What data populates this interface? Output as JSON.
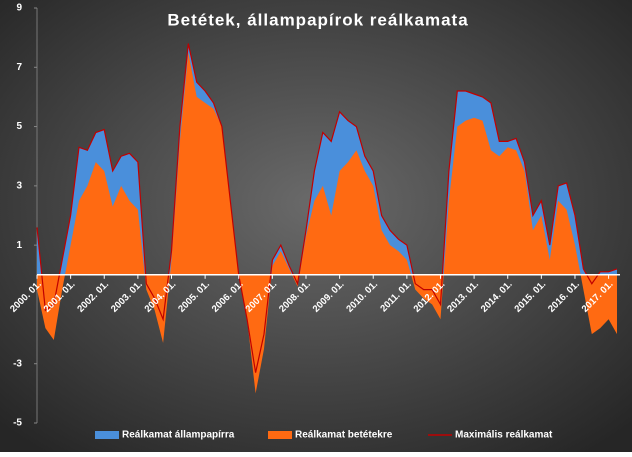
{
  "chart_data": {
    "type": "area",
    "title": "Betétek, állampapírok  reálkamata",
    "categories": [
      "2000. 01.",
      null,
      null,
      null,
      "2001. 01.",
      null,
      null,
      null,
      "2002. 01.",
      null,
      null,
      null,
      "2003. 01.",
      null,
      null,
      null,
      "2004. 01.",
      null,
      null,
      null,
      "2005. 01.",
      null,
      null,
      null,
      "2006. 01.",
      null,
      null,
      null,
      "2007. 01.",
      null,
      null,
      null,
      "2008. 01.",
      null,
      null,
      null,
      "2009. 01.",
      null,
      null,
      null,
      "2010. 01.",
      null,
      null,
      null,
      "2011. 01.",
      null,
      null,
      null,
      "2012. 01.",
      null,
      null,
      null,
      "2013. 01.",
      null,
      null,
      null,
      "2014. 01.",
      null,
      null,
      null,
      "2015. 01.",
      null,
      null,
      null,
      "2016. 01.",
      null,
      null,
      null,
      "2017. 01.",
      null
    ],
    "series": [
      {
        "name": "Reálkamat állampapírra",
        "color": "#4a8fdb",
        "values": [
          1.6,
          -1.2,
          -1.0,
          0.5,
          2.0,
          4.3,
          4.2,
          4.8,
          4.9,
          3.5,
          4.0,
          4.1,
          3.8,
          -0.3,
          -0.8,
          -1.5,
          0.8,
          5.0,
          7.8,
          6.5,
          6.2,
          5.8,
          5.0,
          2.5,
          0.0,
          -1.5,
          -3.3,
          -2.0,
          0.5,
          1.0,
          0.3,
          -0.3,
          1.5,
          3.5,
          4.8,
          4.5,
          5.5,
          5.2,
          5.0,
          4.0,
          3.5,
          2.0,
          1.5,
          1.2,
          1.0,
          -0.3,
          -0.5,
          -0.5,
          -1.0,
          3.5,
          6.2,
          6.2,
          6.1,
          6.0,
          5.8,
          4.5,
          4.5,
          4.6,
          3.8,
          2.0,
          2.5,
          1.0,
          3.0,
          3.1,
          2.0,
          0.2,
          -0.3,
          0.1,
          0.1,
          0.2
        ]
      },
      {
        "name": "Reálkamat betétekre",
        "color": "#ff6a12",
        "values": [
          -0.5,
          -1.8,
          -2.2,
          -0.5,
          1.0,
          2.5,
          3.0,
          3.8,
          3.5,
          2.3,
          3.0,
          2.5,
          2.2,
          -0.5,
          -1.2,
          -2.3,
          0.5,
          4.5,
          7.5,
          6.0,
          5.8,
          5.6,
          5.0,
          2.5,
          0.0,
          -1.5,
          -4.0,
          -2.5,
          0.3,
          0.8,
          0.2,
          -0.4,
          1.3,
          2.5,
          3.0,
          2.0,
          3.5,
          3.8,
          4.2,
          3.5,
          3.0,
          1.5,
          1.0,
          0.8,
          0.5,
          -0.5,
          -0.8,
          -1.0,
          -1.5,
          2.5,
          5.0,
          5.2,
          5.3,
          5.2,
          4.2,
          4.0,
          4.3,
          4.2,
          3.5,
          1.5,
          2.0,
          0.5,
          2.5,
          2.2,
          1.0,
          -0.5,
          -2.0,
          -1.8,
          -1.5,
          -2.0
        ]
      },
      {
        "name": "Maximális reálkamat",
        "color": "#c00000",
        "values": [
          1.6,
          -1.2,
          -1.0,
          0.5,
          2.0,
          4.3,
          4.2,
          4.8,
          4.9,
          3.5,
          4.0,
          4.1,
          3.8,
          -0.3,
          -0.8,
          -1.5,
          0.8,
          5.0,
          7.8,
          6.5,
          6.2,
          5.8,
          5.0,
          2.5,
          0.0,
          -1.5,
          -3.3,
          -2.0,
          0.5,
          1.0,
          0.3,
          -0.3,
          1.5,
          3.5,
          4.8,
          4.5,
          5.5,
          5.2,
          5.0,
          4.0,
          3.5,
          2.0,
          1.5,
          1.2,
          1.0,
          -0.3,
          -0.5,
          -0.5,
          -1.0,
          3.5,
          6.2,
          6.2,
          6.1,
          6.0,
          5.8,
          4.5,
          4.5,
          4.6,
          3.8,
          2.0,
          2.5,
          1.0,
          3.0,
          3.1,
          2.0,
          0.2,
          -0.3,
          0.1,
          0.1,
          0.2
        ]
      }
    ],
    "ylim": [
      -5,
      9
    ],
    "yticks": [
      -5,
      -3,
      1,
      3,
      5,
      7,
      9
    ]
  }
}
